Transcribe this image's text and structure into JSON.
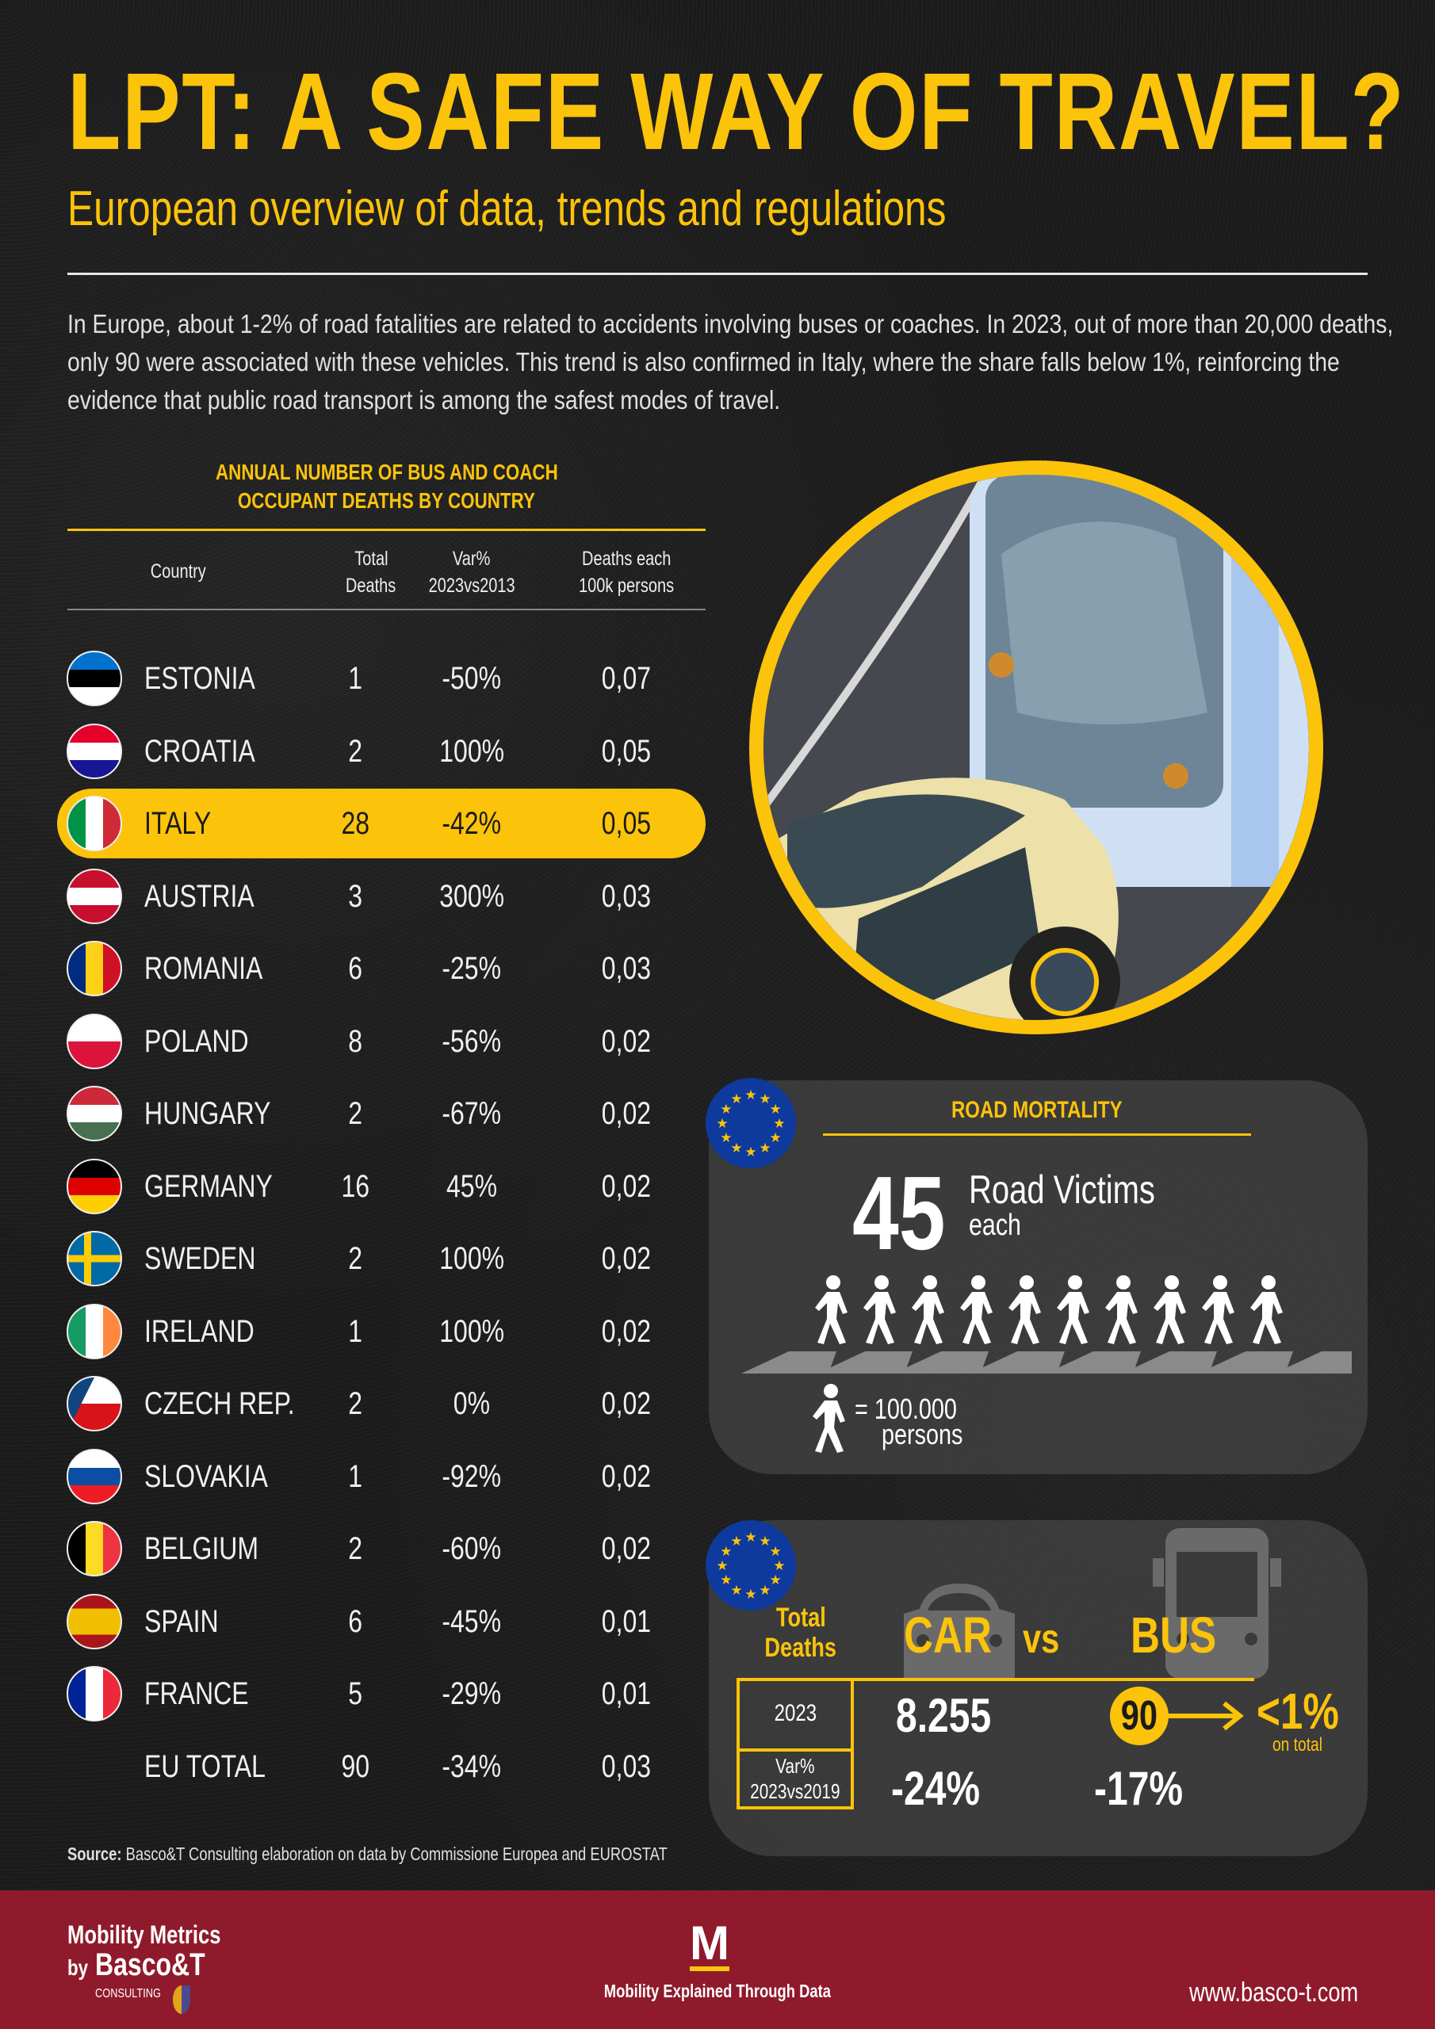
{
  "header": {
    "title": "LPT: A SAFE WAY OF TRAVEL?",
    "subtitle": "European overview of data, trends and regulations",
    "intro": "In Europe, about 1-2% of road fatalities are related to accidents involving buses or coaches. In 2023, out of more than 20,000 deaths, only 90 were associated with these vehicles. This trend is also confirmed in Italy, where the share falls below 1%, reinforcing the evidence that public road transport is among the safest modes of travel."
  },
  "colors": {
    "accent": "#fcc30b",
    "background": "#1b1b1b",
    "footer": "#8f1a2c",
    "eu_blue": "#0d3a9c"
  },
  "table": {
    "title_line1": "ANNUAL NUMBER OF BUS AND COACH",
    "title_line2": "OCCUPANT DEATHS BY COUNTRY",
    "columns": {
      "country": "Country",
      "total_1": "Total",
      "total_2": "Deaths",
      "var_1": "Var%",
      "var_2": "2023vs2013",
      "rate_1": "Deaths each",
      "rate_2": "100k persons"
    },
    "rows": [
      {
        "country": "ESTONIA",
        "total": "1",
        "var": "-50%",
        "rate": "0,07",
        "flag": {
          "dir": "h",
          "stripes": [
            "#0072ce",
            "#000000",
            "#ffffff"
          ]
        }
      },
      {
        "country": "CROATIA",
        "total": "2",
        "var": "100%",
        "rate": "0,05",
        "flag": {
          "dir": "h",
          "stripes": [
            "#e4002b",
            "#ffffff",
            "#171796"
          ]
        }
      },
      {
        "country": "ITALY",
        "total": "28",
        "var": "-42%",
        "rate": "0,05",
        "highlight": true,
        "flag": {
          "dir": "v",
          "stripes": [
            "#009246",
            "#ffffff",
            "#ce2b37"
          ]
        }
      },
      {
        "country": "AUSTRIA",
        "total": "3",
        "var": "300%",
        "rate": "0,03",
        "flag": {
          "dir": "h",
          "stripes": [
            "#c8102e",
            "#ffffff",
            "#c8102e"
          ]
        }
      },
      {
        "country": "ROMANIA",
        "total": "6",
        "var": "-25%",
        "rate": "0,03",
        "flag": {
          "dir": "v",
          "stripes": [
            "#002b7f",
            "#fcd116",
            "#ce1126"
          ]
        }
      },
      {
        "country": "POLAND",
        "total": "8",
        "var": "-56%",
        "rate": "0,02",
        "flag": {
          "dir": "h",
          "stripes": [
            "#ffffff",
            "#dc143c"
          ]
        }
      },
      {
        "country": "HUNGARY",
        "total": "2",
        "var": "-67%",
        "rate": "0,02",
        "flag": {
          "dir": "h",
          "stripes": [
            "#ce2939",
            "#ffffff",
            "#477050"
          ]
        }
      },
      {
        "country": "GERMANY",
        "total": "16",
        "var": "45%",
        "rate": "0,02",
        "flag": {
          "dir": "h",
          "stripes": [
            "#000000",
            "#dd0000",
            "#ffce00"
          ]
        }
      },
      {
        "country": "SWEDEN",
        "total": "2",
        "var": "100%",
        "rate": "0,02",
        "flag": {
          "dir": "cross",
          "stripes": [
            "#006aa7",
            "#fecc00"
          ]
        }
      },
      {
        "country": "IRELAND",
        "total": "1",
        "var": "100%",
        "rate": "0,02",
        "flag": {
          "dir": "v",
          "stripes": [
            "#169b62",
            "#ffffff",
            "#ff883e"
          ]
        }
      },
      {
        "country": "CZECH REP.",
        "total": "2",
        "var": "0%",
        "rate": "0,02",
        "flag": {
          "dir": "czech",
          "stripes": [
            "#ffffff",
            "#d7141a",
            "#11457e"
          ]
        }
      },
      {
        "country": "SLOVAKIA",
        "total": "1",
        "var": "-92%",
        "rate": "0,02",
        "flag": {
          "dir": "h",
          "stripes": [
            "#ffffff",
            "#0b4ea2",
            "#ee1c25"
          ]
        }
      },
      {
        "country": "BELGIUM",
        "total": "2",
        "var": "-60%",
        "rate": "0,02",
        "flag": {
          "dir": "v",
          "stripes": [
            "#000000",
            "#fdda24",
            "#ef3340"
          ]
        }
      },
      {
        "country": "SPAIN",
        "total": "6",
        "var": "-45%",
        "rate": "0,01",
        "flag": {
          "dir": "h",
          "stripes": [
            "#aa151b",
            "#f1bf00",
            "#f1bf00",
            "#aa151b"
          ]
        }
      },
      {
        "country": "FRANCE",
        "total": "5",
        "var": "-29%",
        "rate": "0,01",
        "flag": {
          "dir": "v",
          "stripes": [
            "#002395",
            "#ffffff",
            "#ed2939"
          ]
        }
      },
      {
        "country": "EU TOTAL",
        "total": "90",
        "var": "-34%",
        "rate": "0,03"
      }
    ]
  },
  "road_mortality": {
    "title": "ROAD MORTALITY",
    "number": "45",
    "label": "Road Victims",
    "each": "each",
    "legend_value": "= 100.000",
    "legend_unit": "persons",
    "icons_shown": 10
  },
  "comparison": {
    "total_deaths_1": "Total",
    "total_deaths_2": "Deaths",
    "car_label": "CAR",
    "vs_label": "vs",
    "bus_label": "BUS",
    "year_label": "2023",
    "var_label_1": "Var%",
    "var_label_2": "2023vs2019",
    "car_2023": "8.255",
    "bus_2023": "90",
    "share": "<1%",
    "share_note": "on total",
    "car_var": "-24%",
    "bus_var": "-17%"
  },
  "source": {
    "label": "Source:",
    "text": " Basco&T Consulting elaboration on data by Commissione Europea and EUROSTAT"
  },
  "footer": {
    "brand_line1": "Mobility Metrics",
    "brand_by": "by",
    "brand_company": "Basco&T",
    "brand_consulting": "CONSULTING",
    "logo_letter": "M",
    "tagline": "Mobility Explained Through Data",
    "website": "www.basco-t.com"
  }
}
